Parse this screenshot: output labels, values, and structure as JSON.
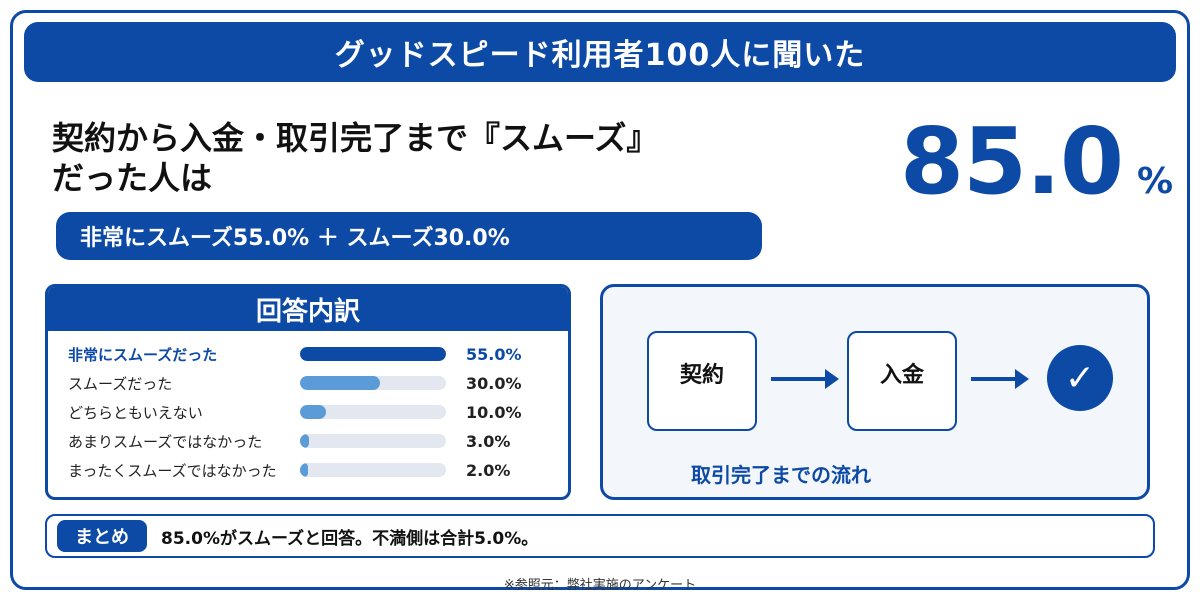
{
  "banner": {
    "title": "グッドスピード利用者100人に聞いた"
  },
  "headline": {
    "line1": "契約から入金・取引完了まで『スムーズ』",
    "line2": "だった人は"
  },
  "result": {
    "value": "85.0",
    "unit": "%"
  },
  "sub_pill": {
    "text": "非常にスムーズ55.0% ＋ スムーズ30.0%"
  },
  "breakdown": {
    "title": "回答内訳",
    "rows": [
      {
        "label": "非常にスムーズだった",
        "value": "55.0%",
        "fraction": 1.0,
        "color": "#0d4aa6",
        "highlight": true
      },
      {
        "label": "スムーズだった",
        "value": "30.0%",
        "fraction": 0.55,
        "color": "#5b9bd8",
        "highlight": false
      },
      {
        "label": "どちらともいえない",
        "value": "10.0%",
        "fraction": 0.18,
        "color": "#5b9bd8",
        "highlight": false
      },
      {
        "label": "あまりスムーズではなかった",
        "value": "3.0%",
        "fraction": 0.06,
        "color": "#5b9bd8",
        "highlight": false
      },
      {
        "label": "まったくスムーズではなかった",
        "value": "2.0%",
        "fraction": 0.04,
        "color": "#5b9bd8",
        "highlight": false
      }
    ]
  },
  "flow": {
    "step1": "契約",
    "step2": "入金",
    "check_icon": "check-icon",
    "check_glyph": "✓",
    "caption": "取引完了までの流れ"
  },
  "summary": {
    "tag": "まとめ",
    "text": "85.0%がスムーズと回答。不満側は合計5.0%。"
  },
  "footnote": "※参照元：弊社実施のアンケート",
  "colors": {
    "brand": "#0d4aa6",
    "light_bar": "#5b9bd8",
    "track": "#e3e8f0"
  }
}
